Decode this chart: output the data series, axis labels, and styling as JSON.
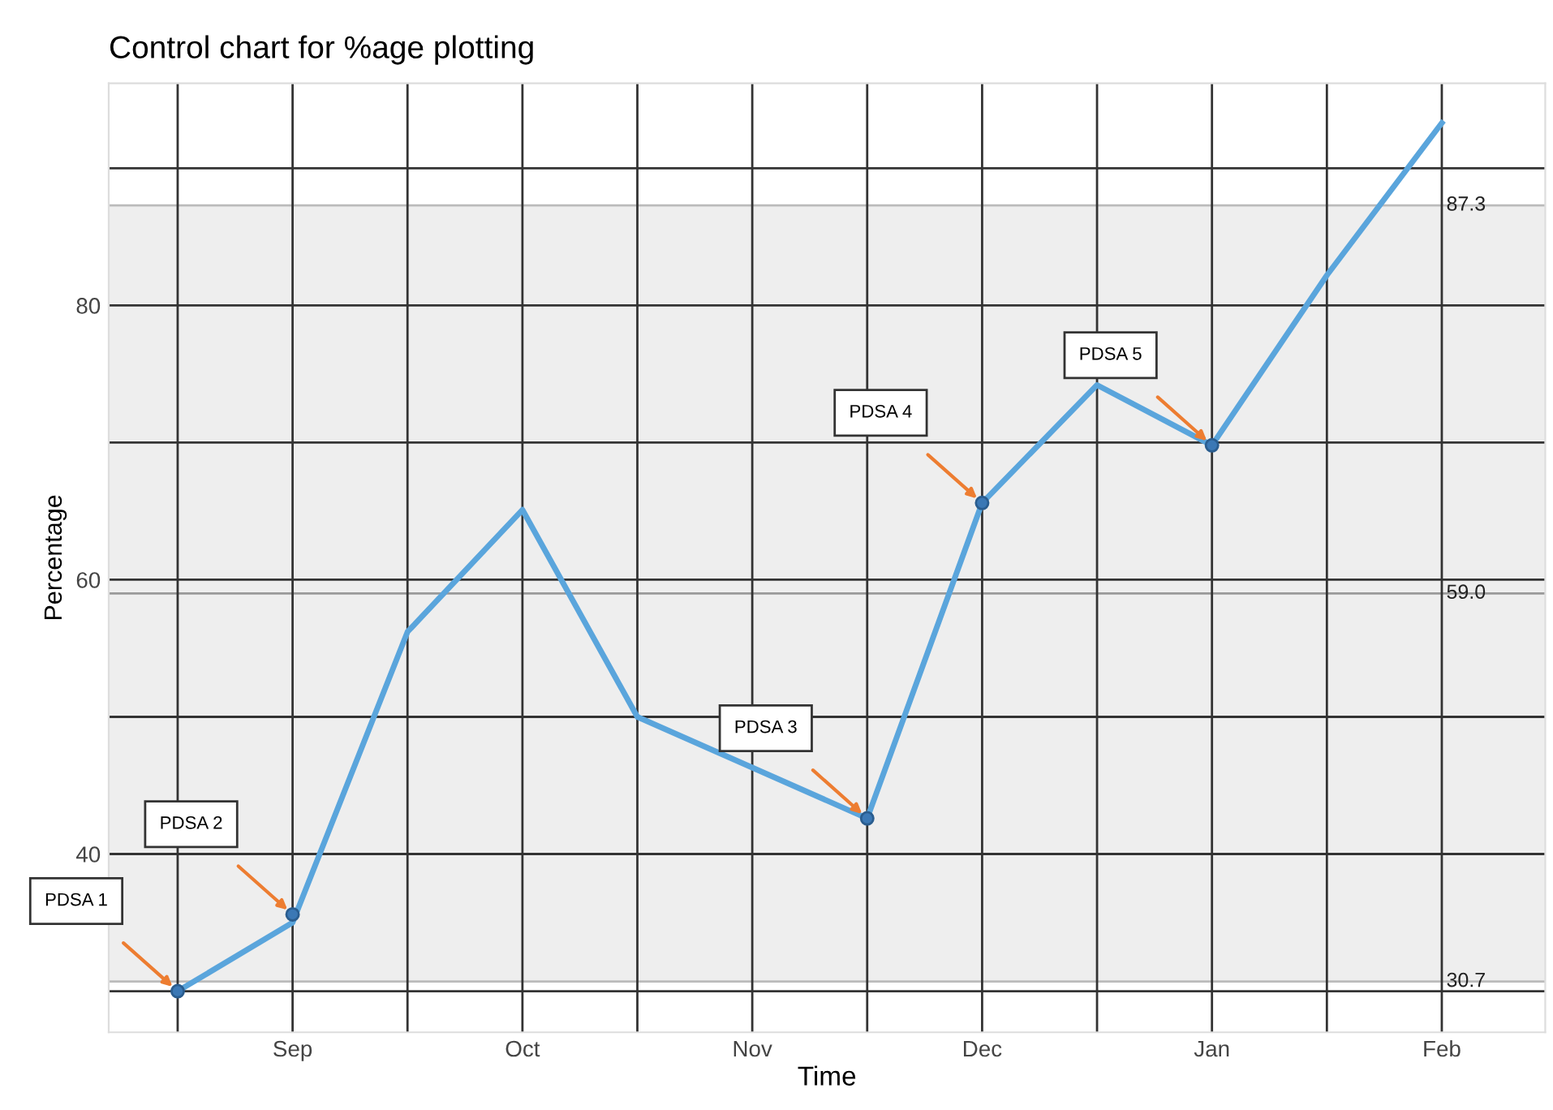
{
  "chart_data": {
    "type": "line",
    "title": "Control chart for %age plotting",
    "xlabel": "Time",
    "ylabel": "Percentage",
    "categories": [
      null,
      "Sep",
      null,
      "Oct",
      null,
      "Nov",
      null,
      "Dec",
      null,
      "Jan",
      null,
      "Feb"
    ],
    "series": [
      {
        "color": "#5aa5dc",
        "values": [
          30.0,
          35.0,
          56.2,
          65.1,
          50.0,
          46.3,
          42.6,
          65.6,
          74.2,
          69.8,
          82.2,
          93.3
        ]
      },
      {
        "type": "scatter",
        "color": "#3b78b5",
        "marker": "circle",
        "values": [
          30.0,
          35.6,
          null,
          null,
          null,
          null,
          42.6,
          65.6,
          null,
          69.8,
          null,
          null
        ]
      }
    ],
    "ylim": [
      27,
      96.2
    ],
    "yticks": [
      {
        "value": 30,
        "label": null
      },
      40,
      {
        "value": 50,
        "label": null
      },
      60,
      {
        "value": 70,
        "label": null
      },
      80,
      {
        "value": 90,
        "label": null
      }
    ],
    "grid": true,
    "bands": [
      {
        "axis": "y",
        "from": 30.7,
        "to": 87.3,
        "color": "#eeeeee"
      }
    ],
    "ref_lines": [
      {
        "axis": "y",
        "value": 87.3,
        "label": "87.3",
        "color": "#bbbbbb"
      },
      {
        "axis": "y",
        "value": 59.0,
        "label": "59.0",
        "color": "#999999"
      },
      {
        "axis": "y",
        "value": 30.7,
        "label": "30.7",
        "color": "#bbbbbb"
      }
    ],
    "annotations": [
      "PDSA 1",
      "PDSA 2",
      "PDSA 3",
      "PDSA 4",
      "PDSA 5"
    ]
  }
}
